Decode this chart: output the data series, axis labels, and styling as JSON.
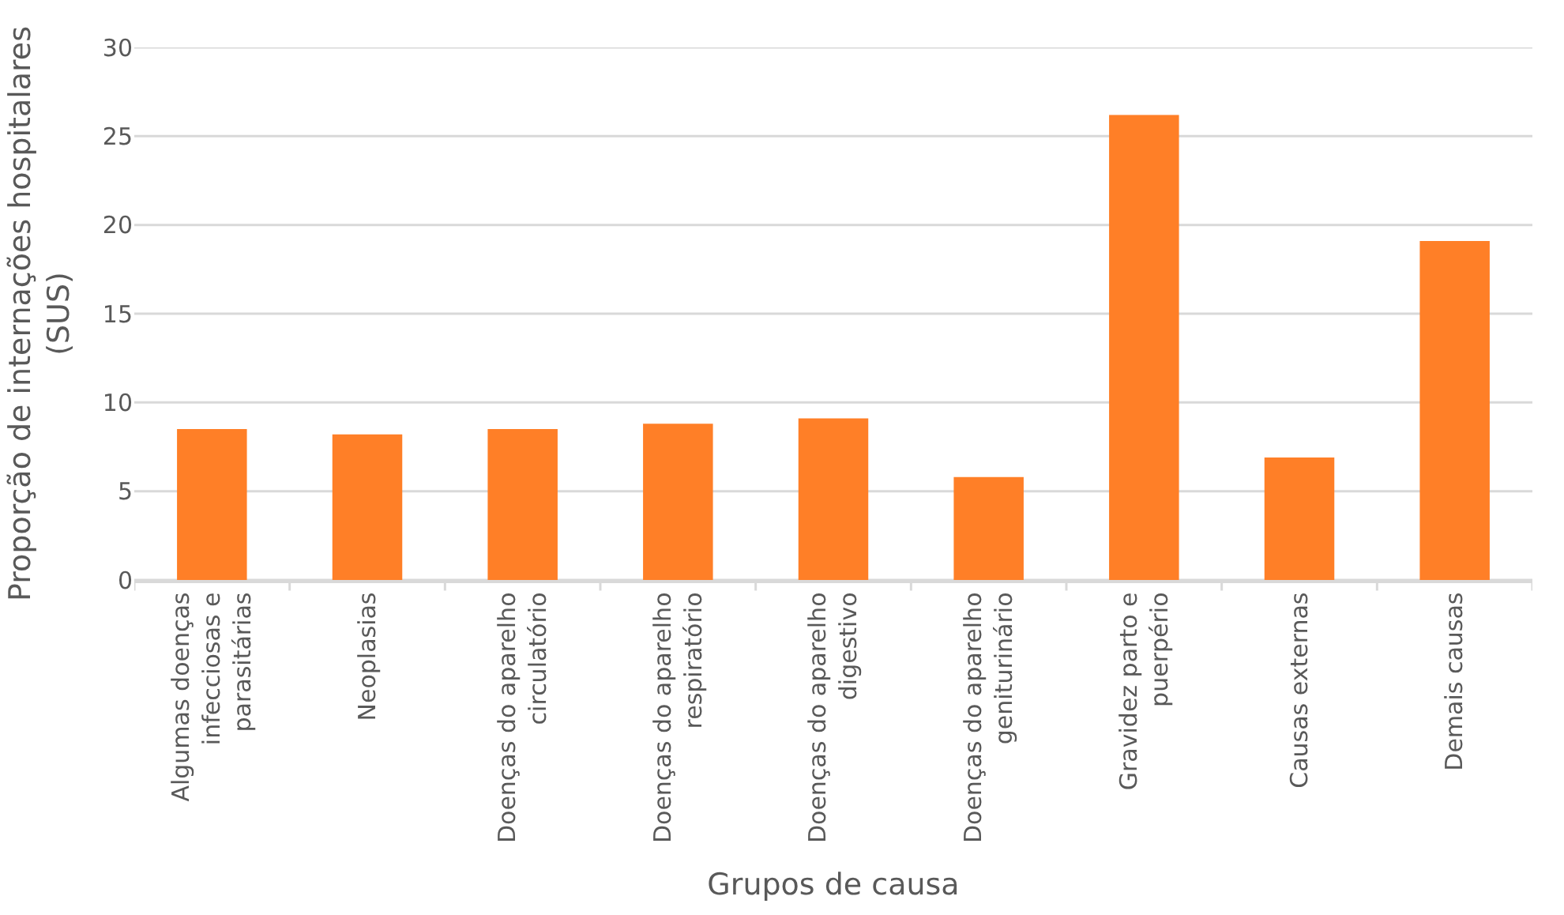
{
  "chart_data": {
    "type": "bar",
    "xlabel": "Grupos de causa",
    "ylabel": "Proporção de internações hospitalares (SUS)",
    "categories": [
      "Algumas doenças infecciosas e parasitárias",
      "Neoplasias",
      "Doenças do aparelho circulatório",
      "Doenças do aparelho respiratório",
      "Doenças do aparelho digestivo",
      "Doenças do aparelho geniturinário",
      "Gravidez parto e puerpério",
      "Causas externas",
      "Demais causas"
    ],
    "values": [
      8.5,
      8.2,
      8.5,
      8.8,
      9.1,
      5.8,
      26.2,
      6.9,
      19.1
    ],
    "color": "#ff7f27",
    "ylim": [
      0,
      30
    ],
    "yticks": [
      0,
      5,
      10,
      15,
      20,
      25,
      30
    ],
    "grid": "y"
  }
}
